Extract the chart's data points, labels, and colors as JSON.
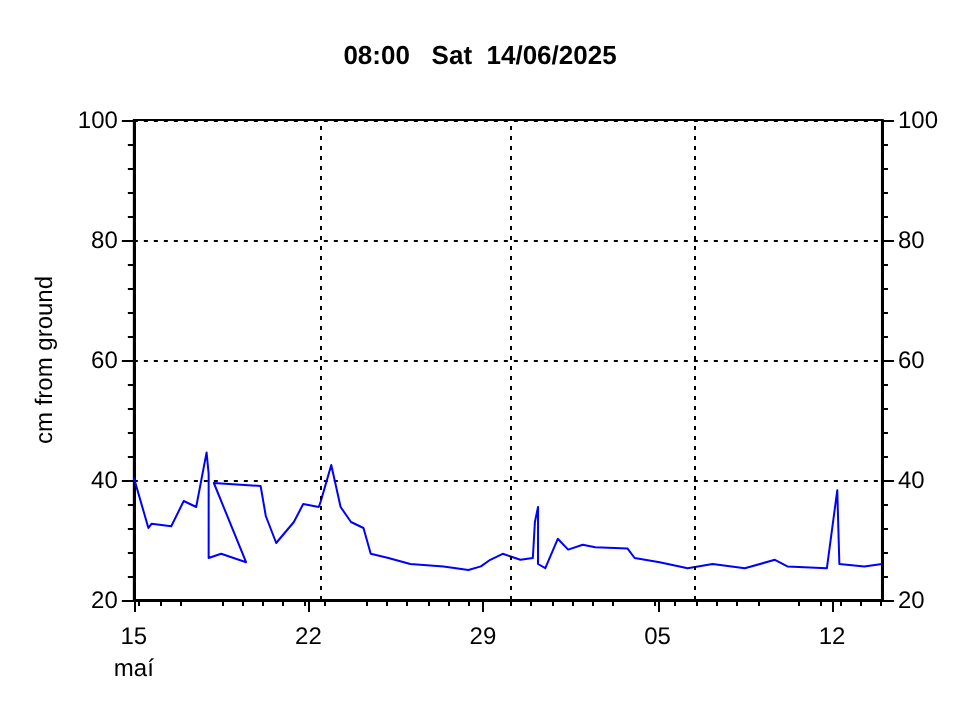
{
  "chart_data": {
    "type": "line",
    "title": "08:00   Sat  14/06/2025",
    "ylabel": "cm from ground",
    "x": [
      "2025-05-15T00:00",
      "2025-05-15T14:00",
      "2025-05-15T17:00",
      "2025-05-16T12:00",
      "2025-05-17T00:00",
      "2025-05-17T12:00",
      "2025-05-17T22:00",
      "2025-05-18T00:00",
      "2025-05-18T00:00",
      "2025-05-18T12:00",
      "2025-05-19T05:00",
      "2025-05-19T12:00",
      "2025-05-18T05:00",
      "2025-05-20T02:00",
      "2025-05-20T07:00",
      "2025-05-20T17:00",
      "2025-05-21T10:00",
      "2025-05-21T19:00",
      "2025-05-22T10:00",
      "2025-05-22T12:00",
      "2025-05-22T22:00",
      "2025-05-23T07:00",
      "2025-05-23T17:00",
      "2025-05-24T05:00",
      "2025-05-24T12:00",
      "2025-05-25T05:00",
      "2025-05-26T02:00",
      "2025-05-27T10:00",
      "2025-05-28T10:00",
      "2025-05-28T22:00",
      "2025-05-29T07:00",
      "2025-05-29T19:00",
      "2025-05-30T12:00",
      "2025-05-31T00:00",
      "2025-05-31T02:00",
      "2025-05-31T05:00",
      "2025-05-31T05:00",
      "2025-05-31T12:00",
      "2025-06-01T00:00",
      "2025-06-01T10:00",
      "2025-06-02T00:00",
      "2025-06-02T12:00",
      "2025-06-03T19:00",
      "2025-06-04T02:00",
      "2025-06-05T02:00",
      "2025-06-06T05:00",
      "2025-06-07T05:00",
      "2025-06-08T12:00",
      "2025-06-09T17:00",
      "2025-06-10T05:00",
      "2025-06-11T19:00",
      "2025-06-12T05:00",
      "2025-06-12T07:00",
      "2025-06-13T07:00",
      "2025-06-14T00:00"
    ],
    "series": [
      {
        "color": "#0000ff",
        "values": [
          40.4,
          32,
          32.7,
          32.3,
          36.5,
          35.5,
          44.6,
          41,
          27,
          27.7,
          26.7,
          26.3,
          39.5,
          39,
          34,
          29.5,
          33,
          36,
          35.5,
          36.5,
          42.5,
          35.5,
          33,
          32,
          27.7,
          27,
          26,
          25.6,
          25,
          25.6,
          26.7,
          27.7,
          26.7,
          27,
          33,
          35.5,
          26,
          25.3,
          30.2,
          28.4,
          29.2,
          28.8,
          28.6,
          27,
          26.3,
          25.3,
          26,
          25.3,
          26.7,
          25.6,
          25.3,
          38.3,
          26,
          25.6,
          26
        ]
      }
    ],
    "xlim": [
      "2025-05-15",
      "2025-06-14"
    ],
    "xticks": [
      {
        "value": "2025-05-15",
        "label": "15\nmaí"
      },
      {
        "value": "2025-05-22",
        "label": "22"
      },
      {
        "value": "2025-05-29",
        "label": "29"
      },
      {
        "value": "2025-06-05",
        "label": "05"
      },
      {
        "value": "2025-06-12",
        "label": "12"
      }
    ],
    "ylim": [
      20,
      100
    ],
    "yticks": [
      20,
      40,
      60,
      80,
      100
    ],
    "y2lim": [
      20,
      100
    ],
    "y2ticks": [
      20,
      40,
      60,
      80,
      100
    ],
    "grid": "y",
    "marker": "none",
    "line_style": "solid",
    "ref_lines": [
      {
        "axis": "x",
        "value": "2025-05-22T12:00",
        "color": "#000000",
        "line_style": "dotted"
      },
      {
        "axis": "x",
        "value": "2025-05-30T02:00",
        "color": "#000000",
        "line_style": "dotted"
      },
      {
        "axis": "x",
        "value": "2025-06-06T12:00",
        "color": "#000000",
        "line_style": "dotted"
      }
    ]
  }
}
